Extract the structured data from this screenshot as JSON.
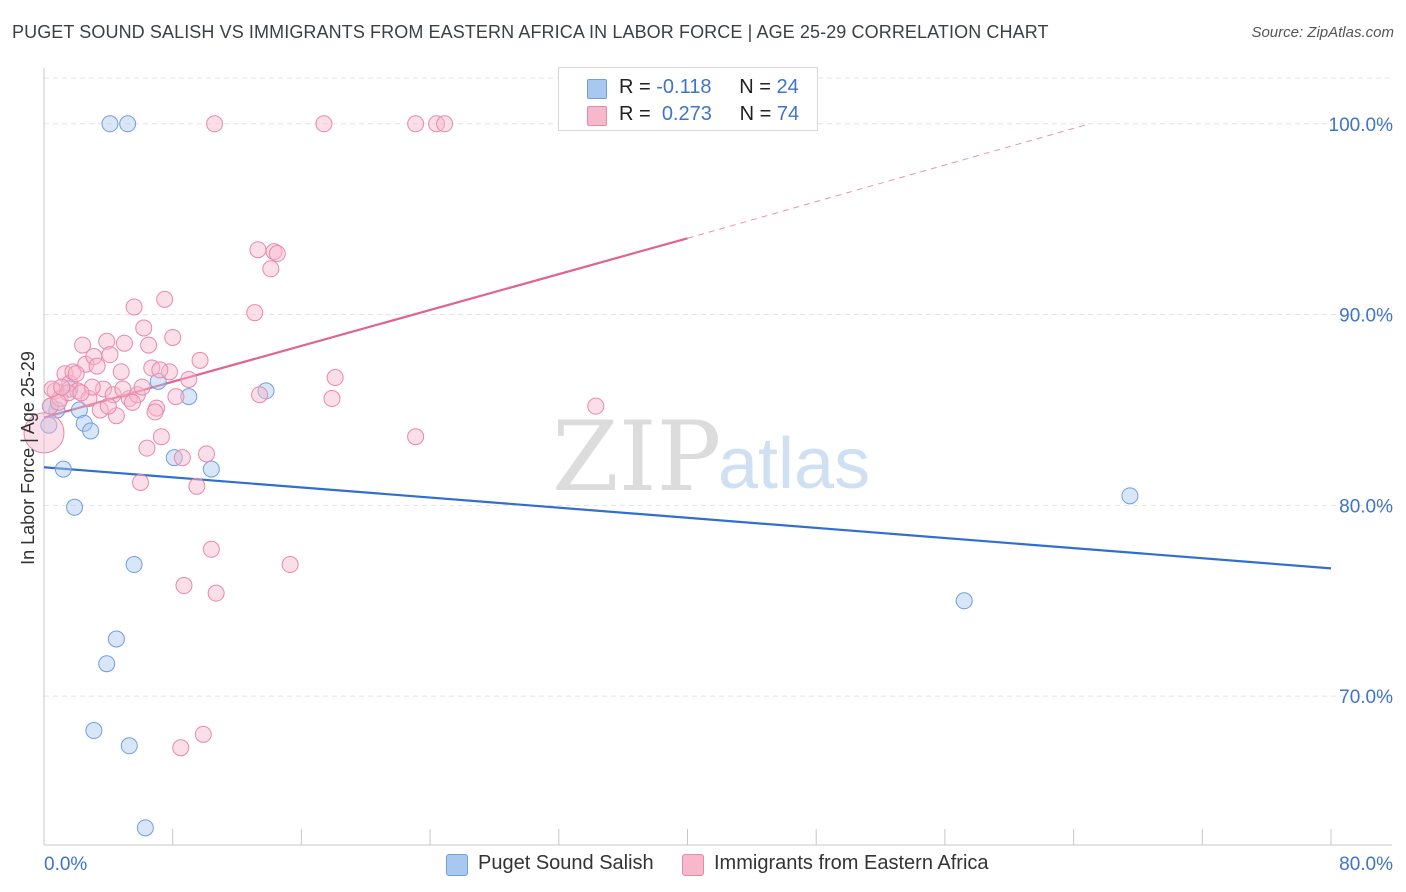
{
  "title": "PUGET SOUND SALISH VS IMMIGRANTS FROM EASTERN AFRICA IN LABOR FORCE | AGE 25-29 CORRELATION CHART",
  "source": "Source: ZipAtlas.com",
  "watermark": {
    "zip": "ZIP",
    "atlas": "atlas"
  },
  "legend_top": [
    {
      "r_label": "R =",
      "r_value": "-0.118",
      "n_label": "N =",
      "n_value": "24",
      "color": "#a9c8f0"
    },
    {
      "r_label": "R =",
      "r_value": "0.273",
      "n_label": "N =",
      "n_value": "74",
      "color": "#f6b8cb"
    }
  ],
  "legend_bottom": [
    {
      "label": "Puget Sound Salish",
      "color": "#a9c8f0"
    },
    {
      "label": "Immigrants from Eastern Africa",
      "color": "#f6b8cb"
    }
  ],
  "chart_data": {
    "type": "scatter",
    "title": "PUGET SOUND SALISH VS IMMIGRANTS FROM EASTERN AFRICA IN LABOR FORCE | AGE 25-29 CORRELATION CHART",
    "xlabel": "",
    "ylabel": "In Labor Force | Age 25-29",
    "xlim": [
      0,
      80
    ],
    "ylim": [
      62.2,
      102.4
    ],
    "x_tick_labels": [
      {
        "value": 0,
        "label": "0.0%"
      },
      {
        "value": 80,
        "label": "80.0%"
      }
    ],
    "y_tick_labels": [
      {
        "value": 100,
        "label": "100.0%"
      },
      {
        "value": 90,
        "label": "90.0%"
      },
      {
        "value": 80,
        "label": "80.0%"
      },
      {
        "value": 70,
        "label": "70.0%"
      }
    ],
    "x_minor_ticks": [
      0,
      8,
      16,
      24,
      32,
      40,
      48,
      56,
      64,
      72,
      80
    ],
    "grid": true,
    "series": [
      {
        "name": "Puget Sound Salish",
        "color": "#6f9fe0",
        "fill": "#a9c8f0",
        "points": [
          [
            0.3,
            84.2
          ],
          [
            0.8,
            85.0
          ],
          [
            1.2,
            81.9
          ],
          [
            1.6,
            86.1
          ],
          [
            1.9,
            79.9
          ],
          [
            2.2,
            85.0
          ],
          [
            2.5,
            84.3
          ],
          [
            2.9,
            83.9
          ],
          [
            4.1,
            100.0
          ],
          [
            5.2,
            100.0
          ],
          [
            5.6,
            76.9
          ],
          [
            4.5,
            73.0
          ],
          [
            3.9,
            71.7
          ],
          [
            3.1,
            68.2
          ],
          [
            5.3,
            67.4
          ],
          [
            6.3,
            63.1
          ],
          [
            7.1,
            86.5
          ],
          [
            8.1,
            82.5
          ],
          [
            9.0,
            85.7
          ],
          [
            10.4,
            81.9
          ],
          [
            13.8,
            86.0
          ],
          [
            57.2,
            75.0
          ],
          [
            67.5,
            80.5
          ],
          [
            0.4,
            85.2
          ]
        ],
        "trend": {
          "x": [
            0,
            80
          ],
          "y": [
            82.0,
            76.7
          ],
          "color": "#2f6fd0"
        }
      },
      {
        "name": "Immigrants from Eastern Africa",
        "color": "#e889a8",
        "fill": "#f6b8cb",
        "points": [
          [
            0.0,
            83.8
          ],
          [
            0.4,
            85.2
          ],
          [
            0.7,
            86.0
          ],
          [
            1.0,
            85.6
          ],
          [
            1.3,
            86.9
          ],
          [
            1.6,
            86.4
          ],
          [
            1.8,
            87.0
          ],
          [
            2.1,
            86.0
          ],
          [
            2.4,
            88.4
          ],
          [
            2.6,
            87.4
          ],
          [
            2.8,
            85.6
          ],
          [
            3.1,
            87.8
          ],
          [
            3.3,
            87.3
          ],
          [
            3.5,
            85.0
          ],
          [
            3.7,
            86.1
          ],
          [
            3.9,
            88.6
          ],
          [
            4.1,
            87.9
          ],
          [
            4.3,
            85.8
          ],
          [
            4.5,
            84.7
          ],
          [
            4.8,
            87.0
          ],
          [
            5.0,
            88.5
          ],
          [
            5.3,
            85.6
          ],
          [
            5.6,
            90.4
          ],
          [
            5.8,
            85.8
          ],
          [
            6.0,
            81.2
          ],
          [
            6.2,
            89.3
          ],
          [
            6.5,
            88.4
          ],
          [
            6.7,
            87.2
          ],
          [
            7.0,
            85.1
          ],
          [
            7.3,
            83.6
          ],
          [
            7.5,
            90.8
          ],
          [
            7.8,
            87.0
          ],
          [
            8.0,
            88.8
          ],
          [
            8.2,
            85.7
          ],
          [
            8.6,
            82.5
          ],
          [
            9.0,
            86.6
          ],
          [
            9.5,
            81.0
          ],
          [
            9.7,
            87.6
          ],
          [
            10.1,
            82.7
          ],
          [
            10.4,
            77.7
          ],
          [
            10.7,
            75.4
          ],
          [
            13.1,
            90.1
          ],
          [
            13.3,
            93.4
          ],
          [
            14.1,
            92.4
          ],
          [
            14.3,
            93.3
          ],
          [
            14.5,
            93.2
          ],
          [
            15.3,
            76.9
          ],
          [
            17.9,
            85.6
          ],
          [
            18.1,
            86.7
          ],
          [
            23.1,
            83.6
          ],
          [
            34.3,
            85.2
          ],
          [
            10.6,
            100.0
          ],
          [
            17.4,
            100.0
          ],
          [
            23.1,
            100.0
          ],
          [
            24.4,
            100.0
          ],
          [
            24.9,
            100.0
          ],
          [
            6.1,
            86.2
          ],
          [
            8.5,
            67.3
          ],
          [
            9.9,
            68.0
          ],
          [
            8.7,
            75.8
          ],
          [
            6.4,
            83.0
          ],
          [
            4.9,
            86.1
          ],
          [
            2.0,
            86.9
          ],
          [
            1.5,
            85.9
          ],
          [
            0.9,
            85.4
          ],
          [
            3.0,
            86.2
          ],
          [
            5.5,
            85.4
          ],
          [
            7.2,
            87.1
          ],
          [
            6.9,
            84.9
          ],
          [
            13.4,
            85.8
          ],
          [
            0.5,
            86.1
          ],
          [
            1.1,
            86.2
          ],
          [
            2.3,
            85.9
          ],
          [
            4.0,
            85.2
          ]
        ],
        "trend": {
          "x": [
            0,
            40
          ],
          "y": [
            84.6,
            94.0
          ],
          "color": "#e0658e",
          "dashed_extension": {
            "x": [
              40,
              65
            ],
            "y": [
              94.0,
              100.0
            ]
          }
        }
      }
    ]
  }
}
